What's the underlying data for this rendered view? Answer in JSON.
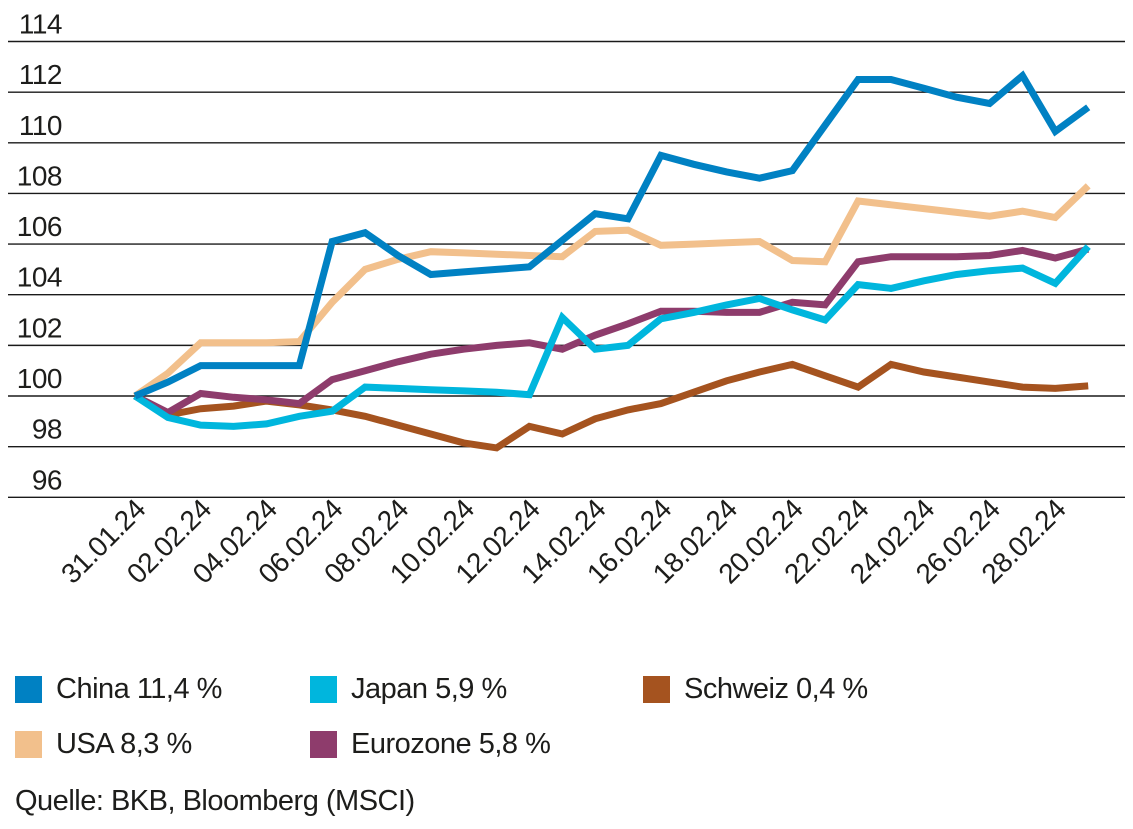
{
  "chart_data": {
    "type": "line",
    "title": "",
    "xlabel": "",
    "ylabel": "",
    "ylim": [
      96,
      114
    ],
    "yticks": [
      96,
      98,
      100,
      102,
      104,
      106,
      108,
      110,
      112,
      114
    ],
    "grid": "horizontal",
    "legend_position": "bottom",
    "x_tick_every": 2,
    "x": [
      "31.01.24",
      "01.02.24",
      "02.02.24",
      "03.02.24",
      "04.02.24",
      "05.02.24",
      "06.02.24",
      "07.02.24",
      "08.02.24",
      "09.02.24",
      "10.02.24",
      "11.02.24",
      "12.02.24",
      "13.02.24",
      "14.02.24",
      "15.02.24",
      "16.02.24",
      "17.02.24",
      "18.02.24",
      "19.02.24",
      "20.02.24",
      "21.02.24",
      "22.02.24",
      "23.02.24",
      "24.02.24",
      "25.02.24",
      "26.02.24",
      "27.02.24",
      "28.02.24",
      "29.02.24"
    ],
    "x_tick_labels": [
      "31.01.24",
      "02.02.24",
      "04.02.24",
      "06.02.24",
      "08.02.24",
      "10.02.24",
      "12.02.24",
      "14.02.24",
      "16.02.24",
      "18.02.24",
      "20.02.24",
      "22.02.24",
      "24.02.24",
      "26.02.24",
      "28.02.24"
    ],
    "series": [
      {
        "name": "China",
        "legend_label": "China 11,4 %",
        "final_performance_pct": "11,4 %",
        "color": "#0081c3",
        "values": [
          100,
          100.55,
          101.2,
          101.2,
          101.2,
          101.2,
          106.1,
          106.45,
          105.55,
          104.8,
          104.9,
          105.0,
          105.1,
          106.15,
          107.2,
          107.0,
          109.5,
          109.15,
          108.85,
          108.6,
          108.9,
          110.7,
          112.5,
          112.5,
          112.15,
          111.8,
          111.55,
          112.65,
          110.45,
          111.4
        ]
      },
      {
        "name": "Japan",
        "legend_label": "Japan 5,9 %",
        "final_performance_pct": "5,9 %",
        "color": "#00b6dd",
        "values": [
          100,
          99.15,
          98.85,
          98.8,
          98.9,
          99.2,
          99.4,
          100.35,
          100.3,
          100.25,
          100.2,
          100.15,
          100.05,
          103.1,
          101.85,
          102.0,
          103.05,
          103.3,
          103.6,
          103.85,
          103.4,
          103.0,
          104.4,
          104.25,
          104.55,
          104.8,
          104.95,
          105.05,
          104.45,
          105.9
        ]
      },
      {
        "name": "Schweiz",
        "legend_label": "Schweiz 0,4 %",
        "final_performance_pct": "0,4 %",
        "color": "#a5531f",
        "values": [
          100,
          99.25,
          99.5,
          99.6,
          99.8,
          99.65,
          99.45,
          99.2,
          98.85,
          98.5,
          98.15,
          97.95,
          98.8,
          98.5,
          99.1,
          99.45,
          99.7,
          100.15,
          100.6,
          100.95,
          101.25,
          100.8,
          100.35,
          101.25,
          100.95,
          100.75,
          100.55,
          100.35,
          100.3,
          100.4
        ]
      },
      {
        "name": "USA",
        "legend_label": "USA 8,3 %",
        "final_performance_pct": "8,3 %",
        "color": "#f2c08c",
        "values": [
          100,
          100.9,
          102.1,
          102.1,
          102.1,
          102.15,
          103.7,
          105.0,
          105.4,
          105.7,
          105.65,
          105.6,
          105.55,
          105.5,
          106.5,
          106.55,
          105.95,
          106.0,
          106.05,
          106.1,
          105.35,
          105.3,
          107.7,
          107.55,
          107.4,
          107.25,
          107.1,
          107.3,
          107.05,
          108.3
        ]
      },
      {
        "name": "Eurozone",
        "legend_label": "Eurozone 5,8 %",
        "final_performance_pct": "5,8 %",
        "color": "#8e3c6c",
        "values": [
          100,
          99.35,
          100.1,
          99.95,
          99.85,
          99.7,
          100.65,
          101.0,
          101.35,
          101.65,
          101.85,
          102.0,
          102.1,
          101.85,
          102.4,
          102.85,
          103.35,
          103.35,
          103.3,
          103.3,
          103.7,
          103.6,
          105.3,
          105.5,
          105.5,
          105.5,
          105.55,
          105.75,
          105.45,
          105.8
        ]
      }
    ],
    "source": "Quelle: BKB, Bloomberg (MSCI)"
  },
  "colors": {
    "grid": "#1a1a1a",
    "text": "#1d1d1b",
    "background": "#ffffff"
  }
}
